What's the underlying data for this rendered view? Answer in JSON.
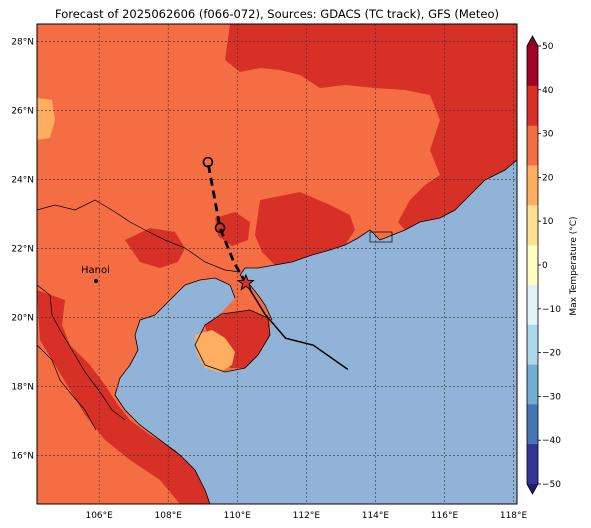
{
  "title": "Forecast of 2025062606 (f066-072), Sources: GDACS (TC track), GFS (Meteo)",
  "map": {
    "lon_range": [
      104.2,
      118.1
    ],
    "lat_range": [
      14.6,
      28.5
    ],
    "lon_ticks": [
      "106°E",
      "108°E",
      "110°E",
      "112°E",
      "114°E",
      "116°E",
      "118°E"
    ],
    "lat_ticks": [
      "16°N",
      "18°N",
      "20°N",
      "22°N",
      "24°N",
      "26°N",
      "28°N"
    ],
    "grid": true,
    "ocean_color": "#91b3d8",
    "land_color": "#f46d43",
    "hot_color": "#d73027",
    "warm_color": "#fdae61"
  },
  "city": {
    "name": "Hanoi"
  },
  "tc_track": {
    "past": [
      [
        113.2,
        18.5
      ],
      [
        112.2,
        19.2
      ],
      [
        111.4,
        19.4
      ],
      [
        110.8,
        20.1
      ],
      [
        110.25,
        21.0
      ]
    ],
    "forecast": [
      [
        110.25,
        21.0
      ],
      [
        109.9,
        21.6
      ],
      [
        109.5,
        22.6
      ],
      [
        109.15,
        24.5
      ]
    ],
    "forecast_points": [
      [
        109.5,
        22.6
      ],
      [
        109.15,
        24.5
      ]
    ],
    "current_position": [
      110.25,
      21.0
    ]
  },
  "colorbar": {
    "label": "Max Temperature (°C)",
    "ticks": [
      "50",
      "40",
      "30",
      "20",
      "10",
      "0",
      "−10",
      "−20",
      "−30",
      "−40",
      "−50"
    ],
    "colors": [
      "#7f0a26",
      "#a50026",
      "#d73027",
      "#f46d43",
      "#fdae61",
      "#fee090",
      "#ffffbf",
      "#e0f3f8",
      "#abd9e9",
      "#74add1",
      "#4575b4",
      "#313695",
      "#1f2070"
    ]
  }
}
